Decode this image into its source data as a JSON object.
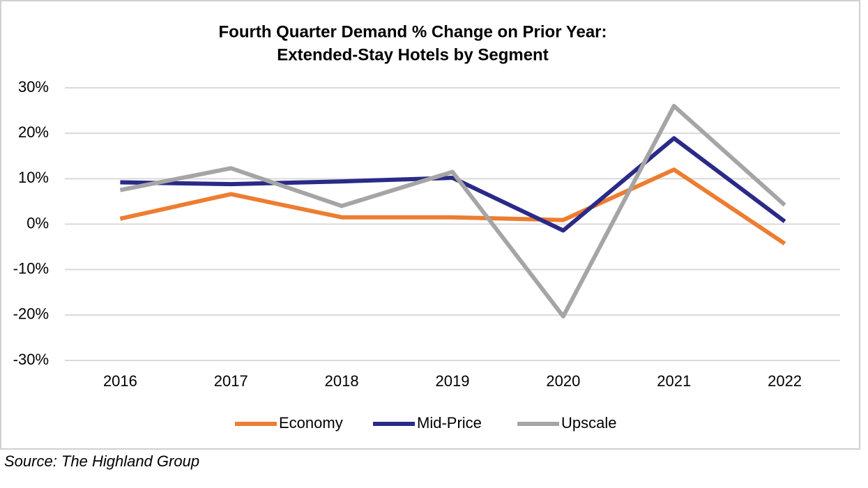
{
  "chart_data": {
    "type": "line",
    "title": [
      "Fourth Quarter Demand % Change on Prior Year:",
      "Extended-Stay Hotels by Segment"
    ],
    "categories": [
      "2016",
      "2017",
      "2018",
      "2019",
      "2020",
      "2021",
      "2022"
    ],
    "series": [
      {
        "name": "Economy",
        "color": "#ed7d31",
        "values": [
          1.2,
          6.6,
          1.5,
          1.5,
          0.9,
          12,
          -4.3
        ]
      },
      {
        "name": "Mid-Price",
        "color": "#2b2a87",
        "values": [
          9.2,
          8.8,
          9.4,
          10.2,
          -1.4,
          18.9,
          0.6
        ]
      },
      {
        "name": "Upscale",
        "color": "#a5a5a5",
        "values": [
          7.5,
          12.3,
          4,
          11.5,
          -20.3,
          26,
          4.2
        ]
      }
    ],
    "ylim": [
      -30,
      30
    ],
    "yticks": [
      {
        "value": -30,
        "label": "-30%"
      },
      {
        "value": -20,
        "label": "-20%"
      },
      {
        "value": -10,
        "label": "-10%"
      },
      {
        "value": 0,
        "label": "0%"
      },
      {
        "value": 10,
        "label": "10%"
      },
      {
        "value": 20,
        "label": "20%"
      },
      {
        "value": 30,
        "label": "30%"
      }
    ],
    "grid": true,
    "legend": "bottom"
  },
  "source": "Source: The Highland Group"
}
